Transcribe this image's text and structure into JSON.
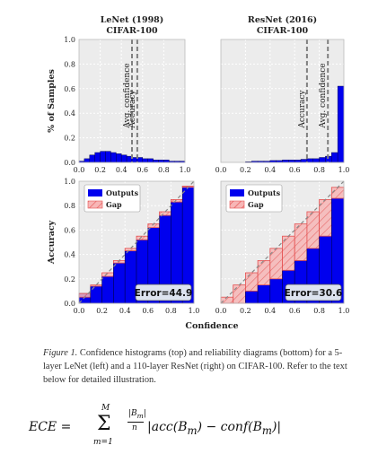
{
  "chart_data": [
    {
      "type": "bar",
      "panel": "top-left",
      "title": "LeNet (1998)",
      "subtitle": "CIFAR-100",
      "ylabel": "% of Samples",
      "xlabel": "",
      "xlim": [
        0,
        1
      ],
      "ylim": [
        0,
        1
      ],
      "xticks": [
        "0.0",
        "0.2",
        "0.4",
        "0.6",
        "0.8",
        "1.0"
      ],
      "yticks": [
        "0.0",
        "0.2",
        "0.4",
        "0.6",
        "0.8",
        "1.0"
      ],
      "bin_width": 0.05,
      "values": [
        0.01,
        0.03,
        0.06,
        0.08,
        0.09,
        0.09,
        0.08,
        0.07,
        0.06,
        0.05,
        0.04,
        0.04,
        0.03,
        0.03,
        0.02,
        0.02,
        0.02,
        0.01,
        0.01,
        0.01
      ],
      "vlines": [
        {
          "label": "Avg. confidence",
          "x": 0.5
        },
        {
          "label": "Accuracy",
          "x": 0.55
        }
      ],
      "grid": true
    },
    {
      "type": "bar",
      "panel": "top-right",
      "title": "ResNet (2016)",
      "subtitle": "CIFAR-100",
      "xlim": [
        0,
        1
      ],
      "ylim": [
        0,
        1
      ],
      "xticks": [
        "0.0",
        "0.2",
        "0.4",
        "0.6",
        "0.8",
        "1.0"
      ],
      "bin_width": 0.05,
      "values": [
        0,
        0,
        0,
        0,
        0.005,
        0.01,
        0.01,
        0.01,
        0.015,
        0.015,
        0.02,
        0.02,
        0.02,
        0.025,
        0.03,
        0.03,
        0.04,
        0.05,
        0.08,
        0.62
      ],
      "vlines": [
        {
          "label": "Accuracy",
          "x": 0.7
        },
        {
          "label": "Avg. confidence",
          "x": 0.87
        }
      ],
      "grid": true
    },
    {
      "type": "bar",
      "panel": "bottom-left",
      "ylabel": "Accuracy",
      "xlim": [
        0,
        1
      ],
      "ylim": [
        0,
        1
      ],
      "xticks": [
        "0.0",
        "0.2",
        "0.4",
        "0.6",
        "0.8",
        "1.0"
      ],
      "yticks": [
        "0.0",
        "0.2",
        "0.4",
        "0.6",
        "0.8",
        "1.0"
      ],
      "bin_width": 0.1,
      "outputs": [
        0.08,
        0.14,
        0.22,
        0.33,
        0.43,
        0.52,
        0.62,
        0.72,
        0.83,
        0.96
      ],
      "legend": [
        "Outputs",
        "Gap"
      ],
      "legend_position": "top-left",
      "annotation": "Error=44.9",
      "grid": true
    },
    {
      "type": "bar",
      "panel": "bottom-right",
      "xlabel": "Confidence",
      "xlim": [
        0,
        1
      ],
      "ylim": [
        0,
        1
      ],
      "xticks": [
        "0.0",
        "0.2",
        "0.4",
        "0.6",
        "0.8",
        "1.0"
      ],
      "bin_width": 0.1,
      "outputs": [
        0.0,
        0.0,
        0.1,
        0.15,
        0.2,
        0.27,
        0.35,
        0.45,
        0.55,
        0.86
      ],
      "legend": [
        "Outputs",
        "Gap"
      ],
      "legend_position": "top-left",
      "annotation": "Error=30.6",
      "grid": true
    }
  ],
  "colors": {
    "outputs": "#0000ee",
    "gap_fill": "#f7b6b6",
    "gap_stroke": "#e45050",
    "panel_bg": "#ececec",
    "grid": "#ffffff",
    "vline": "#808080",
    "diagonal": "#888888",
    "text": "#222222"
  },
  "caption": {
    "label": "Figure 1.",
    "text": "Confidence histograms (top) and reliability diagrams (bottom) for a 5-layer LeNet (left) and a 110-layer ResNet (right) on CIFAR-100. Refer to the text below for detailed illustration."
  },
  "formula": {
    "lhs": "ECE =",
    "sum_upper": "M",
    "sum_lower": "m=1",
    "fraction_numerator": "|B",
    "fraction_numerator_sub": "m",
    "fraction_denominator": "n",
    "body": "|acc(B",
    "body_sub": "m",
    "body_mid": ") − conf(B",
    "body_end": ")|"
  }
}
